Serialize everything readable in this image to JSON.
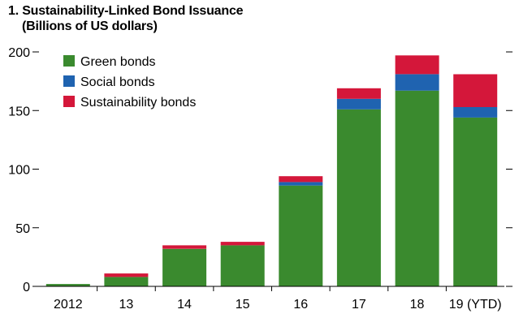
{
  "chart_data": {
    "type": "bar",
    "stacked": true,
    "title": "1. Sustainability-Linked Bond Issuance",
    "subtitle": "(Billions of US dollars)",
    "categories": [
      "2012",
      "13",
      "14",
      "15",
      "16",
      "17",
      "18",
      "19 (YTD)"
    ],
    "series": [
      {
        "name": "Green bonds",
        "color": "#3a8a2e",
        "values": [
          2,
          8,
          32,
          35,
          86,
          151,
          167,
          144
        ]
      },
      {
        "name": "Social bonds",
        "color": "#1f63b0",
        "values": [
          0,
          0,
          0,
          0,
          3,
          9,
          14,
          9
        ]
      },
      {
        "name": "Sustainability bonds",
        "color": "#d4173a",
        "values": [
          0,
          3,
          3,
          3,
          5,
          9,
          16,
          28
        ]
      }
    ],
    "ylim": [
      0,
      200
    ],
    "yticks": [
      0,
      50,
      100,
      150,
      200
    ],
    "legend_position": "top-left",
    "grid": false
  }
}
